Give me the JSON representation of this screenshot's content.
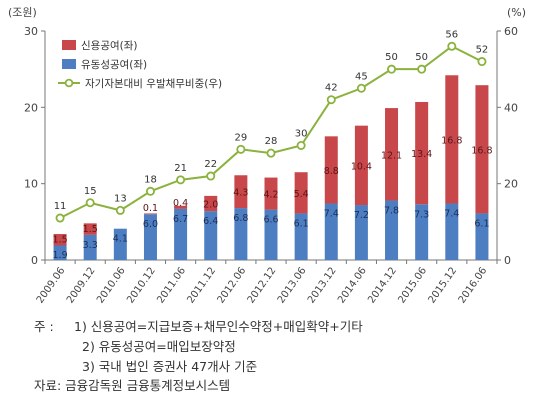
{
  "chart_data": {
    "type": "bar+line",
    "categories": [
      "2009.06",
      "2009.12",
      "2010.06",
      "2010.12",
      "2011.06",
      "2011.12",
      "2012.06",
      "2012.12",
      "2013.06",
      "2013.12",
      "2014.06",
      "2014.12",
      "2015.06",
      "2015.12",
      "2016.06"
    ],
    "left_axis_unit": "(조원)",
    "right_axis_unit": "(%)",
    "ylim_left": [
      0,
      30
    ],
    "yticks_left": [
      0,
      10,
      20,
      30
    ],
    "ylim_right": [
      0,
      60
    ],
    "yticks_right": [
      0,
      20,
      40,
      60
    ],
    "grid": false,
    "legend_position": "top-left",
    "series": [
      {
        "name": "유동성공여(좌)",
        "type": "bar",
        "axis": "left",
        "color": "#4e7ec2",
        "values": [
          1.9,
          3.3,
          4.1,
          6.0,
          6.7,
          6.4,
          6.8,
          6.6,
          6.1,
          7.4,
          7.2,
          7.8,
          7.3,
          7.4,
          6.1
        ],
        "labels": [
          "1.9",
          "3.3",
          "4.1",
          "6.0",
          "6.7",
          "6.4",
          "6.8",
          "6.6",
          "6.1",
          "7.4",
          "7.2",
          "7.8",
          "7.3",
          "7.4",
          "6.1"
        ]
      },
      {
        "name": "신용공여(좌)",
        "type": "bar",
        "axis": "left",
        "color": "#c8474a",
        "values": [
          1.5,
          1.5,
          0,
          0.1,
          0.4,
          2.0,
          4.3,
          4.2,
          5.4,
          8.8,
          10.4,
          12.1,
          13.4,
          16.8,
          16.8
        ],
        "labels": [
          "1.5",
          "1.5",
          "",
          "0.1",
          "0.4",
          "2.0",
          "4.3",
          "4.2",
          "5.4",
          "8.8",
          "10.4",
          "12.1",
          "13.4",
          "16.8",
          "16.8"
        ]
      },
      {
        "name": "자기자본대비 우발채무비중(우)",
        "type": "line",
        "axis": "right",
        "color": "#8ab23c",
        "values": [
          11,
          15,
          13,
          18,
          21,
          22,
          29,
          28,
          30,
          42,
          45,
          50,
          50,
          56,
          52
        ],
        "labels": [
          "11",
          "15",
          "13",
          "18",
          "21",
          "22",
          "29",
          "28",
          "30",
          "42",
          "45",
          "50",
          "50",
          "56",
          "52"
        ]
      }
    ]
  },
  "notes": {
    "prefix": "주 :",
    "items": [
      "1) 신용공여=지급보증+채무인수약정+매입확약+기타",
      "2) 유동성공여=매입보장약정",
      "3) 국내 법인 증권사 47개사 기준"
    ],
    "source": "자료: 금융감독원 금융통계정보시스템"
  }
}
